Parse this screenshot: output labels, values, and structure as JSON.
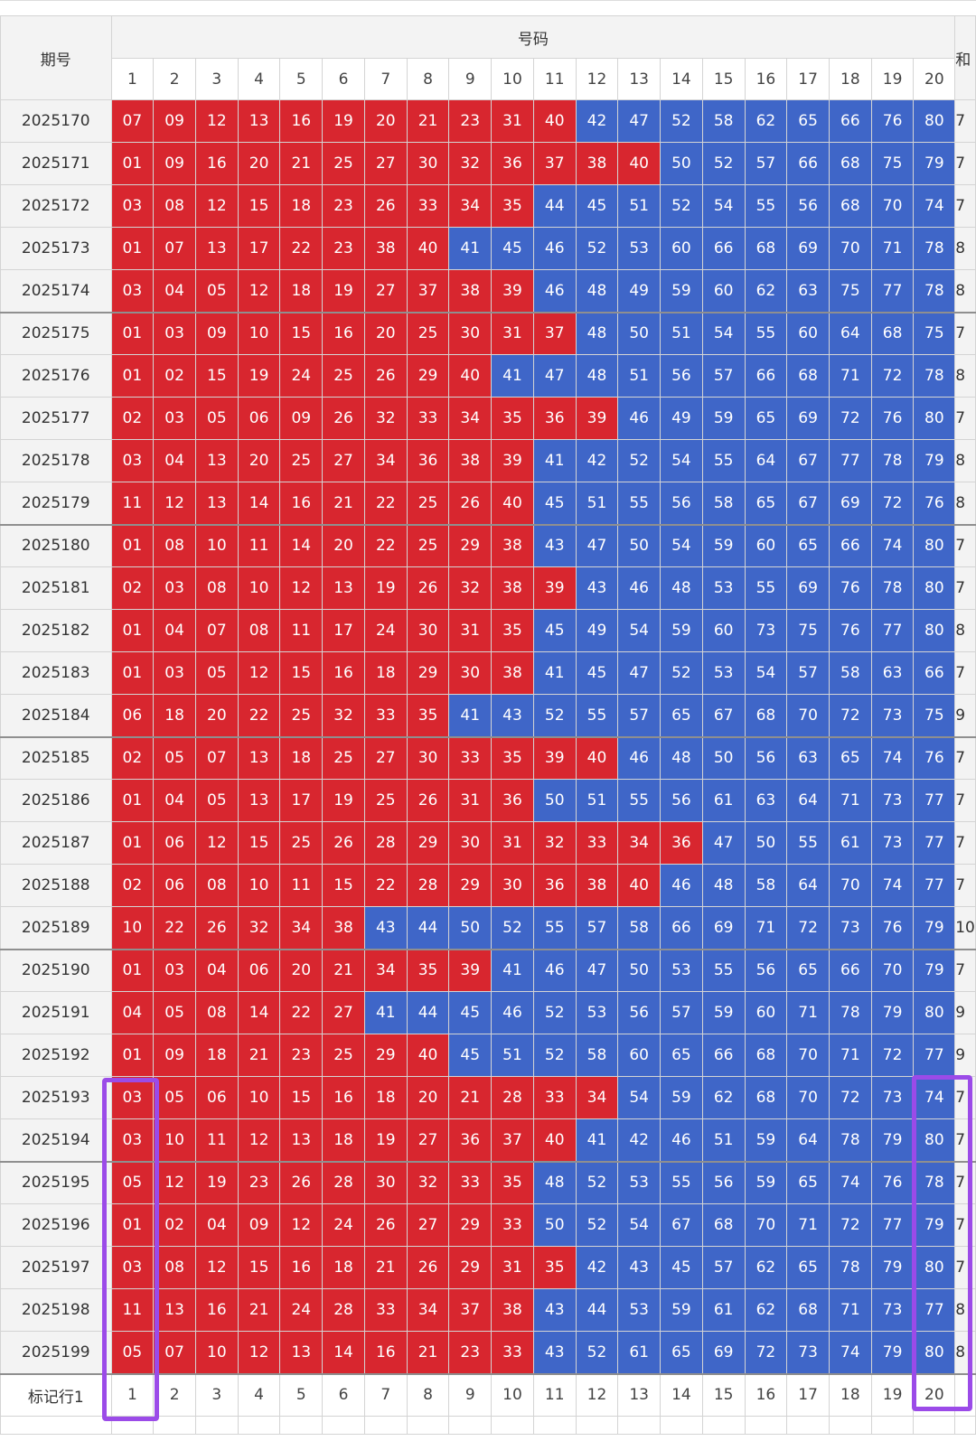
{
  "header": {
    "period_label": "期号",
    "numbers_label": "号码",
    "extra_label": "和"
  },
  "column_numbers": [
    "1",
    "2",
    "3",
    "4",
    "5",
    "6",
    "7",
    "8",
    "9",
    "10",
    "11",
    "12",
    "13",
    "14",
    "15",
    "16",
    "17",
    "18",
    "19",
    "20"
  ],
  "rows": [
    {
      "period": "2025170",
      "nums": [
        "07",
        "09",
        "12",
        "13",
        "16",
        "19",
        "20",
        "21",
        "23",
        "31",
        "40",
        "42",
        "47",
        "52",
        "58",
        "62",
        "65",
        "66",
        "76",
        "80"
      ],
      "red": 11,
      "extra": "7"
    },
    {
      "period": "2025171",
      "nums": [
        "01",
        "09",
        "16",
        "20",
        "21",
        "25",
        "27",
        "30",
        "32",
        "36",
        "37",
        "38",
        "40",
        "50",
        "52",
        "57",
        "66",
        "68",
        "75",
        "79"
      ],
      "red": 13,
      "extra": "7"
    },
    {
      "period": "2025172",
      "nums": [
        "03",
        "08",
        "12",
        "15",
        "18",
        "23",
        "26",
        "33",
        "34",
        "35",
        "44",
        "45",
        "51",
        "52",
        "54",
        "55",
        "56",
        "68",
        "70",
        "74"
      ],
      "red": 10,
      "extra": "7"
    },
    {
      "period": "2025173",
      "nums": [
        "01",
        "07",
        "13",
        "17",
        "22",
        "23",
        "38",
        "40",
        "41",
        "45",
        "46",
        "52",
        "53",
        "60",
        "66",
        "68",
        "69",
        "70",
        "71",
        "78"
      ],
      "red": 8,
      "extra": "8"
    },
    {
      "period": "2025174",
      "nums": [
        "03",
        "04",
        "05",
        "12",
        "18",
        "19",
        "27",
        "37",
        "38",
        "39",
        "46",
        "48",
        "49",
        "59",
        "60",
        "62",
        "63",
        "75",
        "77",
        "78"
      ],
      "red": 10,
      "extra": "8"
    },
    {
      "period": "2025175",
      "nums": [
        "01",
        "03",
        "09",
        "10",
        "15",
        "16",
        "20",
        "25",
        "30",
        "31",
        "37",
        "48",
        "50",
        "51",
        "54",
        "55",
        "60",
        "64",
        "68",
        "75"
      ],
      "red": 11,
      "extra": "7"
    },
    {
      "period": "2025176",
      "nums": [
        "01",
        "02",
        "15",
        "19",
        "24",
        "25",
        "26",
        "29",
        "40",
        "41",
        "47",
        "48",
        "51",
        "56",
        "57",
        "66",
        "68",
        "71",
        "72",
        "78"
      ],
      "red": 9,
      "extra": "8"
    },
    {
      "period": "2025177",
      "nums": [
        "02",
        "03",
        "05",
        "06",
        "09",
        "26",
        "32",
        "33",
        "34",
        "35",
        "36",
        "39",
        "46",
        "49",
        "59",
        "65",
        "69",
        "72",
        "76",
        "80"
      ],
      "red": 12,
      "extra": "7"
    },
    {
      "period": "2025178",
      "nums": [
        "03",
        "04",
        "13",
        "20",
        "25",
        "27",
        "34",
        "36",
        "38",
        "39",
        "41",
        "42",
        "52",
        "54",
        "55",
        "64",
        "67",
        "77",
        "78",
        "79"
      ],
      "red": 10,
      "extra": "8"
    },
    {
      "period": "2025179",
      "nums": [
        "11",
        "12",
        "13",
        "14",
        "16",
        "21",
        "22",
        "25",
        "26",
        "40",
        "45",
        "51",
        "55",
        "56",
        "58",
        "65",
        "67",
        "69",
        "72",
        "76"
      ],
      "red": 10,
      "extra": "8"
    },
    {
      "period": "2025180",
      "nums": [
        "01",
        "08",
        "10",
        "11",
        "14",
        "20",
        "22",
        "25",
        "29",
        "38",
        "43",
        "47",
        "50",
        "54",
        "59",
        "60",
        "65",
        "66",
        "74",
        "80"
      ],
      "red": 10,
      "extra": "7"
    },
    {
      "period": "2025181",
      "nums": [
        "02",
        "03",
        "08",
        "10",
        "12",
        "13",
        "19",
        "26",
        "32",
        "38",
        "39",
        "43",
        "46",
        "48",
        "53",
        "55",
        "69",
        "76",
        "78",
        "80"
      ],
      "red": 11,
      "extra": "7"
    },
    {
      "period": "2025182",
      "nums": [
        "01",
        "04",
        "07",
        "08",
        "11",
        "17",
        "24",
        "30",
        "31",
        "35",
        "45",
        "49",
        "54",
        "59",
        "60",
        "73",
        "75",
        "76",
        "77",
        "80"
      ],
      "red": 10,
      "extra": "8"
    },
    {
      "period": "2025183",
      "nums": [
        "01",
        "03",
        "05",
        "12",
        "15",
        "16",
        "18",
        "29",
        "30",
        "38",
        "41",
        "45",
        "47",
        "52",
        "53",
        "54",
        "57",
        "58",
        "63",
        "66"
      ],
      "red": 10,
      "extra": "7"
    },
    {
      "period": "2025184",
      "nums": [
        "06",
        "18",
        "20",
        "22",
        "25",
        "32",
        "33",
        "35",
        "41",
        "43",
        "52",
        "55",
        "57",
        "65",
        "67",
        "68",
        "70",
        "72",
        "73",
        "75"
      ],
      "red": 8,
      "extra": "9"
    },
    {
      "period": "2025185",
      "nums": [
        "02",
        "05",
        "07",
        "13",
        "18",
        "25",
        "27",
        "30",
        "33",
        "35",
        "39",
        "40",
        "46",
        "48",
        "50",
        "56",
        "63",
        "65",
        "74",
        "76"
      ],
      "red": 12,
      "extra": "7"
    },
    {
      "period": "2025186",
      "nums": [
        "01",
        "04",
        "05",
        "13",
        "17",
        "19",
        "25",
        "26",
        "31",
        "36",
        "50",
        "51",
        "55",
        "56",
        "61",
        "63",
        "64",
        "71",
        "73",
        "77"
      ],
      "red": 10,
      "extra": "7"
    },
    {
      "period": "2025187",
      "nums": [
        "01",
        "06",
        "12",
        "15",
        "25",
        "26",
        "28",
        "29",
        "30",
        "31",
        "32",
        "33",
        "34",
        "36",
        "47",
        "50",
        "55",
        "61",
        "73",
        "77"
      ],
      "red": 14,
      "extra": "7"
    },
    {
      "period": "2025188",
      "nums": [
        "02",
        "06",
        "08",
        "10",
        "11",
        "15",
        "22",
        "28",
        "29",
        "30",
        "36",
        "38",
        "40",
        "46",
        "48",
        "58",
        "64",
        "70",
        "74",
        "77"
      ],
      "red": 13,
      "extra": "7"
    },
    {
      "period": "2025189",
      "nums": [
        "10",
        "22",
        "26",
        "32",
        "34",
        "38",
        "43",
        "44",
        "50",
        "52",
        "55",
        "57",
        "58",
        "66",
        "69",
        "71",
        "72",
        "73",
        "76",
        "79"
      ],
      "red": 6,
      "extra": "10"
    },
    {
      "period": "2025190",
      "nums": [
        "01",
        "03",
        "04",
        "06",
        "20",
        "21",
        "34",
        "35",
        "39",
        "41",
        "46",
        "47",
        "50",
        "53",
        "55",
        "56",
        "65",
        "66",
        "70",
        "79"
      ],
      "red": 9,
      "extra": "7"
    },
    {
      "period": "2025191",
      "nums": [
        "04",
        "05",
        "08",
        "14",
        "22",
        "27",
        "41",
        "44",
        "45",
        "46",
        "52",
        "53",
        "56",
        "57",
        "59",
        "60",
        "71",
        "78",
        "79",
        "80"
      ],
      "red": 6,
      "extra": "9"
    },
    {
      "period": "2025192",
      "nums": [
        "01",
        "09",
        "18",
        "21",
        "23",
        "25",
        "29",
        "40",
        "45",
        "51",
        "52",
        "58",
        "60",
        "65",
        "66",
        "68",
        "70",
        "71",
        "72",
        "77"
      ],
      "red": 8,
      "extra": "9"
    },
    {
      "period": "2025193",
      "nums": [
        "03",
        "05",
        "06",
        "10",
        "15",
        "16",
        "18",
        "20",
        "21",
        "28",
        "33",
        "34",
        "54",
        "59",
        "62",
        "68",
        "70",
        "72",
        "73",
        "74"
      ],
      "red": 12,
      "extra": "7"
    },
    {
      "period": "2025194",
      "nums": [
        "03",
        "10",
        "11",
        "12",
        "13",
        "18",
        "19",
        "27",
        "36",
        "37",
        "40",
        "41",
        "42",
        "46",
        "51",
        "59",
        "64",
        "78",
        "79",
        "80"
      ],
      "red": 11,
      "extra": "7"
    },
    {
      "period": "2025195",
      "nums": [
        "05",
        "12",
        "19",
        "23",
        "26",
        "28",
        "30",
        "32",
        "33",
        "35",
        "48",
        "52",
        "53",
        "55",
        "56",
        "59",
        "65",
        "74",
        "76",
        "78"
      ],
      "red": 10,
      "extra": "7"
    },
    {
      "period": "2025196",
      "nums": [
        "01",
        "02",
        "04",
        "09",
        "12",
        "24",
        "26",
        "27",
        "29",
        "33",
        "50",
        "52",
        "54",
        "67",
        "68",
        "70",
        "71",
        "72",
        "77",
        "79"
      ],
      "red": 10,
      "extra": "7"
    },
    {
      "period": "2025197",
      "nums": [
        "03",
        "08",
        "12",
        "15",
        "16",
        "18",
        "21",
        "26",
        "29",
        "31",
        "35",
        "42",
        "43",
        "45",
        "57",
        "62",
        "65",
        "78",
        "79",
        "80"
      ],
      "red": 11,
      "extra": "7"
    },
    {
      "period": "2025198",
      "nums": [
        "11",
        "13",
        "16",
        "21",
        "24",
        "28",
        "33",
        "34",
        "37",
        "38",
        "43",
        "44",
        "53",
        "59",
        "61",
        "62",
        "68",
        "71",
        "73",
        "77"
      ],
      "red": 10,
      "extra": "8"
    },
    {
      "period": "2025199",
      "nums": [
        "05",
        "07",
        "10",
        "12",
        "13",
        "14",
        "16",
        "21",
        "23",
        "33",
        "43",
        "52",
        "61",
        "65",
        "69",
        "72",
        "73",
        "74",
        "79",
        "80"
      ],
      "red": 10,
      "extra": "8"
    }
  ],
  "separators_before": [
    "2025175",
    "2025180",
    "2025185",
    "2025190",
    "2025195"
  ],
  "mark_row": {
    "label": "标记行1",
    "numbers": [
      "1",
      "2",
      "3",
      "4",
      "5",
      "6",
      "7",
      "8",
      "9",
      "10",
      "11",
      "12",
      "13",
      "14",
      "15",
      "16",
      "17",
      "18",
      "19",
      "20"
    ]
  },
  "colors": {
    "red": "#d8262f",
    "blue": "#3f66c8",
    "highlight": "#9b4be8"
  }
}
